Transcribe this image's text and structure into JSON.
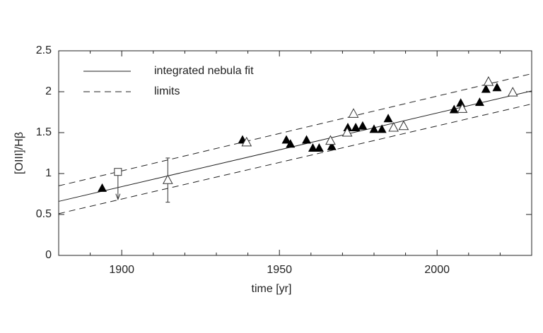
{
  "chart_data": {
    "type": "scatter",
    "xlabel": "time [yr]",
    "ylabel": "[OIII]/Hβ",
    "xlim": [
      1880,
      2030
    ],
    "xticks": [
      1900,
      1950,
      2000
    ],
    "xminorticks": [
      1890,
      1910,
      1920,
      1930,
      1940,
      1960,
      1970,
      1980,
      1990,
      2010,
      2020
    ],
    "ylim": [
      0,
      2.5
    ],
    "yticks": [
      0,
      0.5,
      1,
      1.5,
      2,
      2.5
    ],
    "series": [
      {
        "marker": "filled-triangle",
        "color": "#000000",
        "x": [
          1893.8,
          1938.3,
          1952.2,
          1953.5,
          1958.6,
          1960.6,
          1962.6,
          1966.6,
          1971.7,
          1974.2,
          1976.4,
          1980,
          1982.5,
          1984.5,
          2005.4,
          2007.5,
          2013.5,
          2015.5,
          2019
        ],
        "values": [
          0.82,
          1.41,
          1.41,
          1.36,
          1.41,
          1.31,
          1.31,
          1.33,
          1.56,
          1.56,
          1.58,
          1.54,
          1.54,
          1.67,
          1.78,
          1.86,
          1.87,
          2.03,
          2.05
        ]
      },
      {
        "marker": "open-triangle",
        "color": "#333333",
        "x": [
          1914.6,
          1939.6,
          1966.2,
          1971.5,
          1973.5,
          1986.2,
          1989.4,
          2008,
          2016.3,
          2024
        ],
        "values": [
          0.92,
          1.38,
          1.4,
          1.5,
          1.73,
          1.56,
          1.58,
          1.79,
          2.12,
          1.99
        ],
        "errors": [
          0.27,
          null,
          null,
          null,
          null,
          null,
          null,
          null,
          null,
          null
        ]
      },
      {
        "marker": "open-square-upper-limit",
        "color": "#333333",
        "x": [
          1898.8
        ],
        "values": [
          1.02
        ]
      }
    ],
    "fit_lines": [
      {
        "name": "integrated nebula fit",
        "style": "solid",
        "segments": [
          {
            "x": [
              1880,
              2030
            ],
            "values": [
              0.66,
              2.01
            ]
          }
        ]
      },
      {
        "name": "limits",
        "style": "dashed",
        "segments": [
          {
            "x": [
              1880,
              2030
            ],
            "values": [
              0.85,
              2.22
            ]
          },
          {
            "x": [
              1880,
              2030
            ],
            "values": [
              0.51,
              1.85
            ]
          }
        ]
      }
    ]
  }
}
